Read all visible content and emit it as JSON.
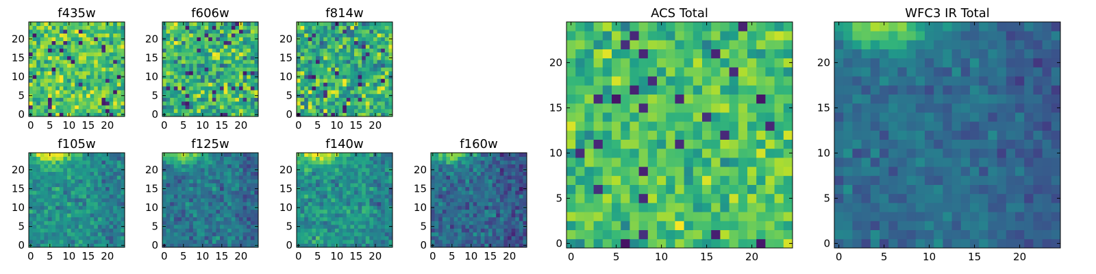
{
  "chart_data": [
    {
      "type": "heatmap",
      "title": "f435w",
      "grid_size": 25,
      "colormap": "viridis",
      "xticks": [
        0,
        5,
        10,
        15,
        20
      ],
      "yticks": [
        0,
        5,
        10,
        15,
        20
      ],
      "xlim": [
        -0.5,
        24.5
      ],
      "ylim": [
        -0.5,
        24.5
      ],
      "pattern": "noise",
      "noise_mean": 0.72,
      "noise_spread": 0.22,
      "seed": 11
    },
    {
      "type": "heatmap",
      "title": "f606w",
      "grid_size": 25,
      "colormap": "viridis",
      "xticks": [
        0,
        5,
        10,
        15,
        20
      ],
      "yticks": [
        0,
        5,
        10,
        15,
        20
      ],
      "xlim": [
        -0.5,
        24.5
      ],
      "ylim": [
        -0.5,
        24.5
      ],
      "pattern": "noise",
      "noise_mean": 0.66,
      "noise_spread": 0.26,
      "seed": 23
    },
    {
      "type": "heatmap",
      "title": "f814w",
      "grid_size": 25,
      "colormap": "viridis",
      "xticks": [
        0,
        5,
        10,
        15,
        20
      ],
      "yticks": [
        0,
        5,
        10,
        15,
        20
      ],
      "xlim": [
        -0.5,
        24.5
      ],
      "ylim": [
        -0.5,
        24.5
      ],
      "pattern": "noise",
      "noise_mean": 0.64,
      "noise_spread": 0.27,
      "seed": 37
    },
    {
      "type": "heatmap",
      "title": "f105w",
      "grid_size": 25,
      "colormap": "viridis",
      "xticks": [
        0,
        5,
        10,
        15,
        20
      ],
      "yticks": [
        0,
        5,
        10,
        15,
        20
      ],
      "xlim": [
        -0.5,
        24.5
      ],
      "ylim": [
        -0.5,
        24.5
      ],
      "pattern": "ir",
      "noise_mean": 0.5,
      "noise_spread": 0.14,
      "seed": 41
    },
    {
      "type": "heatmap",
      "title": "f125w",
      "grid_size": 25,
      "colormap": "viridis",
      "xticks": [
        0,
        5,
        10,
        15,
        20
      ],
      "yticks": [
        0,
        5,
        10,
        15,
        20
      ],
      "xlim": [
        -0.5,
        24.5
      ],
      "ylim": [
        -0.5,
        24.5
      ],
      "pattern": "ir",
      "noise_mean": 0.4,
      "noise_spread": 0.14,
      "seed": 53
    },
    {
      "type": "heatmap",
      "title": "f140w",
      "grid_size": 25,
      "colormap": "viridis",
      "xticks": [
        0,
        5,
        10,
        15,
        20
      ],
      "yticks": [
        0,
        5,
        10,
        15,
        20
      ],
      "xlim": [
        -0.5,
        24.5
      ],
      "ylim": [
        -0.5,
        24.5
      ],
      "pattern": "ir",
      "noise_mean": 0.52,
      "noise_spread": 0.15,
      "seed": 67
    },
    {
      "type": "heatmap",
      "title": "f160w",
      "grid_size": 25,
      "colormap": "viridis",
      "xticks": [
        0,
        5,
        10,
        15,
        20
      ],
      "yticks": [
        0,
        5,
        10,
        15,
        20
      ],
      "xlim": [
        -0.5,
        24.5
      ],
      "ylim": [
        -0.5,
        24.5
      ],
      "pattern": "ir",
      "noise_mean": 0.34,
      "noise_spread": 0.15,
      "seed": 79
    },
    {
      "type": "heatmap",
      "title": "ACS Total",
      "grid_size": 25,
      "colormap": "viridis",
      "xticks": [
        0,
        5,
        10,
        15,
        20
      ],
      "yticks": [
        0,
        5,
        10,
        15,
        20
      ],
      "xlim": [
        -0.5,
        24.5
      ],
      "ylim": [
        -0.5,
        24.5
      ],
      "pattern": "noise",
      "noise_mean": 0.7,
      "noise_spread": 0.18,
      "seed": 97
    },
    {
      "type": "heatmap",
      "title": "WFC3 IR Total",
      "grid_size": 25,
      "colormap": "viridis",
      "xticks": [
        0,
        5,
        10,
        15,
        20
      ],
      "yticks": [
        0,
        5,
        10,
        15,
        20
      ],
      "xlim": [
        -0.5,
        24.5
      ],
      "ylim": [
        -0.5,
        24.5
      ],
      "pattern": "ir",
      "noise_mean": 0.36,
      "noise_spread": 0.1,
      "seed": 113
    }
  ]
}
